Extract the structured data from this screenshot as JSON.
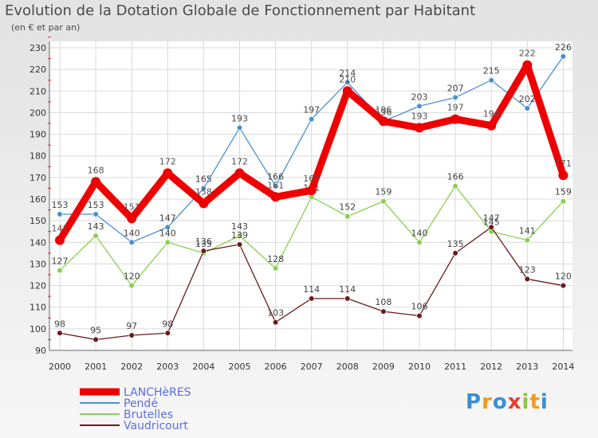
{
  "header": {
    "title": "Evolution de la Dotation Globale de Fonctionnement par Habitant",
    "subtitle": "(en € et par an)"
  },
  "logo": {
    "letters": [
      "P",
      "r",
      "o",
      "x",
      "i",
      "t",
      "i"
    ],
    "colors": [
      "#3a8fd6",
      "#f29a1f",
      "#3a8fd6",
      "#e63c2f",
      "#8cc63f",
      "#f29a1f",
      "#3a8fd6"
    ]
  },
  "chart_data": {
    "type": "line",
    "title": "Evolution de la Dotation Globale de Fonctionnement par Habitant",
    "subtitle": "(en € et par an)",
    "x": [
      2000,
      2001,
      2002,
      2003,
      2004,
      2005,
      2006,
      2007,
      2008,
      2009,
      2010,
      2011,
      2012,
      2013,
      2014
    ],
    "ylim": [
      90,
      230
    ],
    "yticks": [
      90,
      100,
      110,
      120,
      130,
      140,
      150,
      160,
      170,
      180,
      190,
      200,
      210,
      220,
      230
    ],
    "grid": true,
    "legend_position": "bottom-left",
    "series": [
      {
        "name": "LANCHèRES",
        "color": "#ee0000",
        "emphasis": true,
        "values": [
          141,
          168,
          151,
          172,
          158,
          172,
          161,
          164,
          210,
          196,
          193,
          197,
          194,
          222,
          171
        ],
        "labels": [
          "141",
          "168",
          "151",
          "172",
          "158",
          "172",
          "161",
          "164",
          "210",
          "196",
          "193",
          "197",
          "194",
          "222",
          "171"
        ]
      },
      {
        "name": "Pendé",
        "color": "#4a90d0",
        "emphasis": false,
        "values": [
          153,
          153,
          140,
          147,
          165,
          193,
          166,
          197,
          214,
          196,
          203,
          207,
          215,
          202,
          226
        ],
        "labels": [
          "153",
          "153",
          "140",
          "147",
          "165",
          "193",
          "166",
          "197",
          "214",
          "196",
          "203",
          "207",
          "215",
          "202",
          "226"
        ]
      },
      {
        "name": "Brutelles",
        "color": "#88d050",
        "emphasis": false,
        "values": [
          127,
          143,
          120,
          140,
          135,
          143,
          128,
          161,
          152,
          159,
          140,
          166,
          145,
          141,
          159
        ],
        "labels": [
          "127",
          "143",
          "120",
          "140",
          "135",
          "143",
          "128",
          "161",
          "152",
          "159",
          "140",
          "166",
          "145",
          "141",
          "159"
        ]
      },
      {
        "name": "Vaudricourt",
        "color": "#6b1a1a",
        "emphasis": false,
        "values": [
          98,
          95,
          97,
          98,
          136,
          139,
          103,
          114,
          114,
          108,
          106,
          135,
          147,
          123,
          120
        ],
        "labels": [
          "98",
          "95",
          "97",
          "98",
          "136",
          "139",
          "103",
          "114",
          "114",
          "108",
          "106",
          "135",
          "147",
          "123",
          "120"
        ]
      }
    ]
  }
}
